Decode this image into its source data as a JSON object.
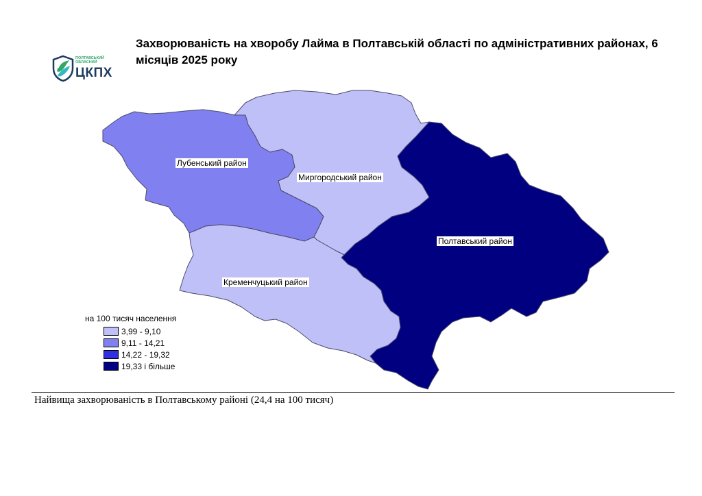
{
  "header": {
    "title": "Захворюваність на хворобу Лайма в Полтавській області по адміністративних районах, 6 місяців 2025 року"
  },
  "logo": {
    "line1": "ПОЛТАВСЬКИЙ",
    "line2": "ОБЛАСНИЙ",
    "abbr": "ЦКПХ",
    "icon": "shield-leaf-icon",
    "colors": {
      "green": "#2fa86a",
      "navy": "#1d3a5f"
    }
  },
  "map": {
    "districts": [
      {
        "id": "lubny",
        "label": "Лубенський район",
        "class_index": 1
      },
      {
        "id": "myrhorod",
        "label": "Миргородський район",
        "class_index": 0
      },
      {
        "id": "poltava",
        "label": "Полтавський район",
        "class_index": 3
      },
      {
        "id": "kremenchuk",
        "label": "Кременчуцький район",
        "class_index": 0
      }
    ]
  },
  "legend": {
    "title": "на 100 тисяч населення",
    "classes": [
      {
        "label": "3,99 - 9,10",
        "color": "#c0c0f8"
      },
      {
        "label": "9,11 - 14,21",
        "color": "#8080f0"
      },
      {
        "label": "14,22 - 19,32",
        "color": "#3030e0"
      },
      {
        "label": "19,33 і більше",
        "color": "#000080"
      }
    ]
  },
  "footer": {
    "note": "Найвища захворюваність в Полтавському районі (24,4 на 100 тисяч)"
  }
}
